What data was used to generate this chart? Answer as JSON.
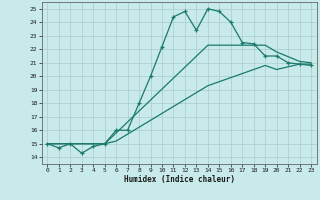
{
  "xlabel": "Humidex (Indice chaleur)",
  "background_color": "#c8eaea",
  "grid_color": "#b0d0d0",
  "line_color": "#1a7a6e",
  "xlim": [
    -0.5,
    23.5
  ],
  "ylim": [
    13.5,
    25.5
  ],
  "xticks": [
    0,
    1,
    2,
    3,
    4,
    5,
    6,
    7,
    8,
    9,
    10,
    11,
    12,
    13,
    14,
    15,
    16,
    17,
    18,
    19,
    20,
    21,
    22,
    23
  ],
  "yticks": [
    14,
    15,
    16,
    17,
    18,
    19,
    20,
    21,
    22,
    23,
    24,
    25
  ],
  "series1_x": [
    0,
    1,
    2,
    3,
    4,
    5,
    6,
    7,
    8,
    9,
    10,
    11,
    12,
    13,
    14,
    15,
    16,
    17,
    18,
    19,
    20,
    21,
    22,
    23
  ],
  "series1_y": [
    15.0,
    14.7,
    15.0,
    14.3,
    14.8,
    15.0,
    16.0,
    16.0,
    18.0,
    20.0,
    22.2,
    24.4,
    24.8,
    23.4,
    25.0,
    24.8,
    24.0,
    22.5,
    22.4,
    21.5,
    21.5,
    21.0,
    20.9,
    20.8
  ],
  "series2_x": [
    0,
    5,
    6,
    14,
    19,
    20,
    22,
    23
  ],
  "series2_y": [
    15.0,
    15.0,
    15.8,
    22.3,
    22.3,
    21.8,
    21.1,
    21.0
  ],
  "series3_x": [
    0,
    5,
    6,
    14,
    19,
    20,
    22,
    23
  ],
  "series3_y": [
    15.0,
    15.0,
    15.2,
    19.3,
    20.8,
    20.5,
    20.9,
    20.9
  ]
}
